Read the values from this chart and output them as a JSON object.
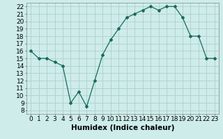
{
  "x": [
    0,
    1,
    2,
    3,
    4,
    5,
    6,
    7,
    8,
    9,
    10,
    11,
    12,
    13,
    14,
    15,
    16,
    17,
    18,
    19,
    20,
    21,
    22,
    23
  ],
  "y": [
    16,
    15,
    15,
    14.5,
    14,
    9,
    10.5,
    8.5,
    12,
    15.5,
    17.5,
    19,
    20.5,
    21,
    21.5,
    22,
    21.5,
    22,
    22,
    20.5,
    18,
    18,
    15,
    15
  ],
  "line_color": "#1a6b5a",
  "marker": "D",
  "marker_size": 2,
  "bg_color": "#cdecea",
  "grid_color": "#aecfcc",
  "xlabel": "Humidex (Indice chaleur)",
  "xlim": [
    -0.5,
    23.5
  ],
  "ylim": [
    7.5,
    22.5
  ],
  "yticks": [
    8,
    9,
    10,
    11,
    12,
    13,
    14,
    15,
    16,
    17,
    18,
    19,
    20,
    21,
    22
  ],
  "xtick_labels": [
    "0",
    "1",
    "2",
    "3",
    "4",
    "5",
    "6",
    "7",
    "8",
    "9",
    "10",
    "11",
    "12",
    "13",
    "14",
    "15",
    "16",
    "17",
    "18",
    "19",
    "20",
    "21",
    "22",
    "23"
  ],
  "tick_fontsize": 6.5,
  "label_fontsize": 7.5
}
